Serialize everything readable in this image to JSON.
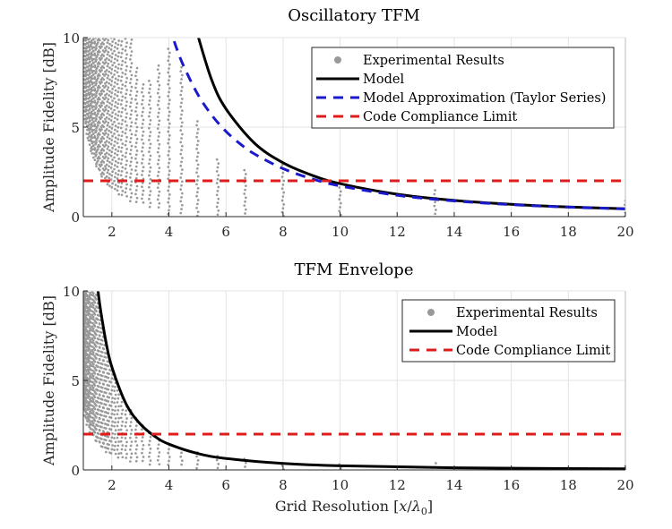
{
  "chart_data": [
    {
      "type": "scatter",
      "title": "Oscillatory TFM",
      "xlabel": "Grid Resolution [x/λ0]",
      "ylabel": "Amplitude Fidelity [dB]",
      "xlim": [
        1,
        20
      ],
      "ylim": [
        0,
        10
      ],
      "xticks": [
        2,
        4,
        6,
        8,
        10,
        12,
        14,
        16,
        18,
        20
      ],
      "yticks": [
        0,
        5,
        10
      ],
      "grid": true,
      "legend_position": "top-right",
      "legend": [
        "Experimental Results",
        "Model",
        "Model Approximation (Taylor Series)",
        "Code Compliance Limit"
      ],
      "colors": {
        "experimental": "#999999",
        "model": "#000000",
        "approximation": "#1a1acc",
        "limit": "#e01b1b"
      },
      "series": [
        {
          "name": "Experimental Results",
          "kind": "scatter-columns",
          "x": [
            20,
            13.33,
            10,
            8,
            6.67,
            5.71,
            5,
            4.44,
            4,
            3.64,
            3.33,
            3.08,
            2.86,
            2.67,
            2.5,
            2.35,
            2.22,
            2.11,
            2.0,
            1.9,
            1.82,
            1.74,
            1.67,
            1.6,
            1.54,
            1.48,
            1.43,
            1.38,
            1.33,
            1.29,
            1.25,
            1.21,
            1.18,
            1.14,
            1.11,
            1.08,
            1.05,
            1.03,
            1.0
          ],
          "ymin": [
            0,
            0,
            0,
            0,
            0,
            0,
            0,
            0,
            0,
            0.45,
            0.54,
            0.63,
            0.73,
            0.84,
            0.96,
            1.1,
            1.2,
            1.35,
            1.5,
            1.65,
            1.8,
            2.0,
            2.15,
            2.35,
            2.5,
            2.7,
            2.9,
            3.1,
            3.4,
            3.6,
            3.8,
            4.1,
            4.3,
            4.6,
            4.9,
            5.1,
            5.4,
            5.7,
            6.0
          ],
          "ymax": [
            1.2,
            1.5,
            2.0,
            3.0,
            2.8,
            3.2,
            5.4,
            8.6,
            9.5,
            8.6,
            7.7,
            7.4,
            8.3,
            10,
            10,
            10,
            10,
            10,
            10,
            10,
            10,
            10,
            10,
            10,
            10,
            10,
            10,
            10,
            10,
            10,
            10,
            10,
            10,
            10,
            10,
            10,
            10,
            10,
            10
          ]
        },
        {
          "name": "Model",
          "kind": "line",
          "x": [
            4.9,
            5,
            5.5,
            6,
            7,
            8,
            9,
            10,
            12,
            14,
            16,
            18,
            20
          ],
          "y": [
            10.92,
            10.2,
            7.63,
            6.02,
            4.1,
            3.01,
            2.32,
            1.84,
            1.25,
            0.905,
            0.688,
            0.54,
            0.436
          ]
        },
        {
          "name": "Model Approximation (Taylor Series)",
          "kind": "dashed-line",
          "x": [
            4,
            4.25,
            4.5,
            5,
            5.5,
            6,
            6.5,
            7,
            8,
            9,
            10,
            12,
            14,
            16,
            18,
            20
          ],
          "y": [
            10.7,
            9.49,
            8.47,
            6.86,
            5.67,
            4.76,
            4.06,
            3.5,
            2.68,
            2.12,
            1.715,
            1.19,
            0.875,
            0.67,
            0.53,
            0.43
          ]
        },
        {
          "name": "Code Compliance Limit",
          "kind": "dashed-hline",
          "y": 2
        }
      ]
    },
    {
      "type": "scatter",
      "title": "TFM Envelope",
      "xlabel": "Grid Resolution [x/λ0]",
      "ylabel": "Amplitude Fidelity [dB]",
      "xlim": [
        1,
        20
      ],
      "ylim": [
        0,
        10
      ],
      "xticks": [
        2,
        4,
        6,
        8,
        10,
        12,
        14,
        16,
        18,
        20
      ],
      "yticks": [
        0,
        5,
        10
      ],
      "grid": true,
      "legend_position": "top-right",
      "legend": [
        "Experimental Results",
        "Model",
        "Code Compliance Limit"
      ],
      "colors": {
        "experimental": "#999999",
        "model": "#000000",
        "limit": "#e01b1b"
      },
      "series": [
        {
          "name": "Experimental Results",
          "kind": "scatter-columns",
          "x": [
            20,
            13.33,
            10,
            8,
            6.67,
            5.71,
            5,
            4.44,
            4,
            3.64,
            3.33,
            3.08,
            2.86,
            2.67,
            2.5,
            2.35,
            2.22,
            2.11,
            2.0,
            1.9,
            1.82,
            1.74,
            1.67,
            1.6,
            1.54,
            1.48,
            1.43,
            1.38,
            1.33,
            1.29,
            1.25,
            1.21,
            1.18,
            1.14,
            1.11,
            1.08,
            1.05,
            1.03,
            1.0
          ],
          "ymin": [
            0,
            0,
            0,
            0,
            0,
            0,
            0.05,
            0.1,
            0.15,
            0.25,
            0.3,
            0.35,
            0.4,
            0.45,
            0.5,
            0.6,
            0.65,
            0.7,
            0.8,
            0.9,
            1.0,
            1.1,
            1.2,
            1.3,
            1.4,
            1.5,
            1.6,
            1.75,
            1.9,
            2.0,
            2.1,
            2.25,
            2.4,
            2.5,
            2.7,
            2.85,
            3.0,
            3.15,
            3.3
          ],
          "ymax": [
            0.4,
            0.45,
            0.45,
            0.45,
            0.65,
            0.8,
            1.0,
            1.2,
            1.5,
            1.8,
            2.2,
            2.6,
            3.0,
            3.4,
            3.8,
            4.3,
            4.8,
            5.3,
            5.8,
            6.4,
            7.0,
            7.6,
            8.2,
            8.9,
            9.5,
            10,
            10,
            10,
            10,
            10,
            10,
            10,
            10,
            10,
            10,
            10,
            10,
            10,
            10
          ]
        },
        {
          "name": "Model",
          "kind": "line",
          "x": [
            1.5,
            1.6,
            1.8,
            2,
            2.5,
            3,
            3.5,
            4,
            5,
            6,
            8,
            10,
            14,
            20
          ],
          "y": [
            10.2,
            8.98,
            7.1,
            5.75,
            3.68,
            2.56,
            1.88,
            1.44,
            0.92,
            0.64,
            0.36,
            0.23,
            0.12,
            0.06
          ]
        },
        {
          "name": "Code Compliance Limit",
          "kind": "dashed-hline",
          "y": 2
        }
      ]
    }
  ],
  "xlabel_parts": {
    "prefix": "Grid Resolution [",
    "var": "x",
    "slash": "/",
    "lambda": "λ",
    "sub": "0",
    "suffix": "]"
  }
}
